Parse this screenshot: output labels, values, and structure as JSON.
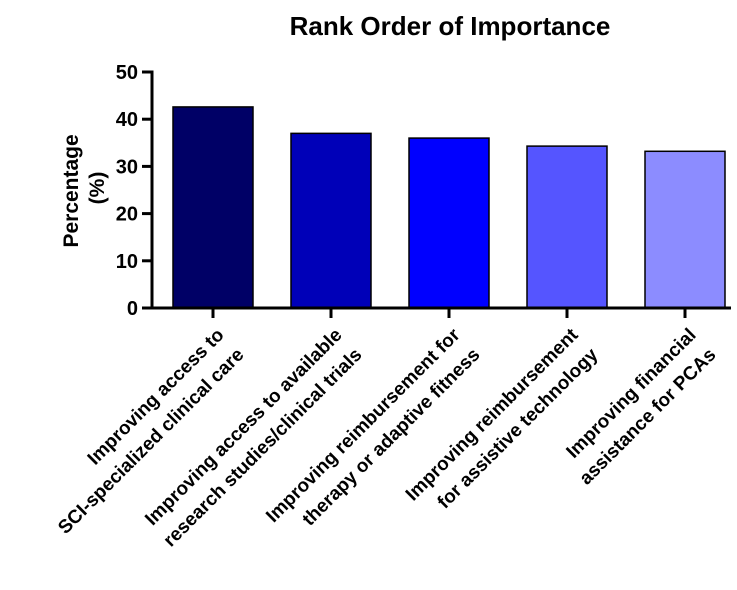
{
  "chart_data": {
    "type": "bar",
    "title": "Rank Order of Importance",
    "ylabel": [
      "Percentage",
      "(%)"
    ],
    "xlabel": "",
    "ylim": [
      0,
      50
    ],
    "yticks": [
      0,
      10,
      20,
      30,
      40,
      50
    ],
    "grid": false,
    "legend": "none",
    "categories": [
      [
        "Improving access to",
        "SCI-specialized clinical care"
      ],
      [
        "Improving access to available",
        "research studies/clinical trials"
      ],
      [
        "Improving reimbursement for",
        "therapy or adaptive fitness"
      ],
      [
        "Improving reimbursement",
        "for assistive technology"
      ],
      [
        "Improving financial",
        "assistance for PCAs"
      ]
    ],
    "values": [
      42.6,
      37.0,
      36.0,
      34.3,
      33.2
    ],
    "colors": [
      "#000066",
      "#0000b8",
      "#0000ff",
      "#5555ff",
      "#8c8cff"
    ]
  }
}
